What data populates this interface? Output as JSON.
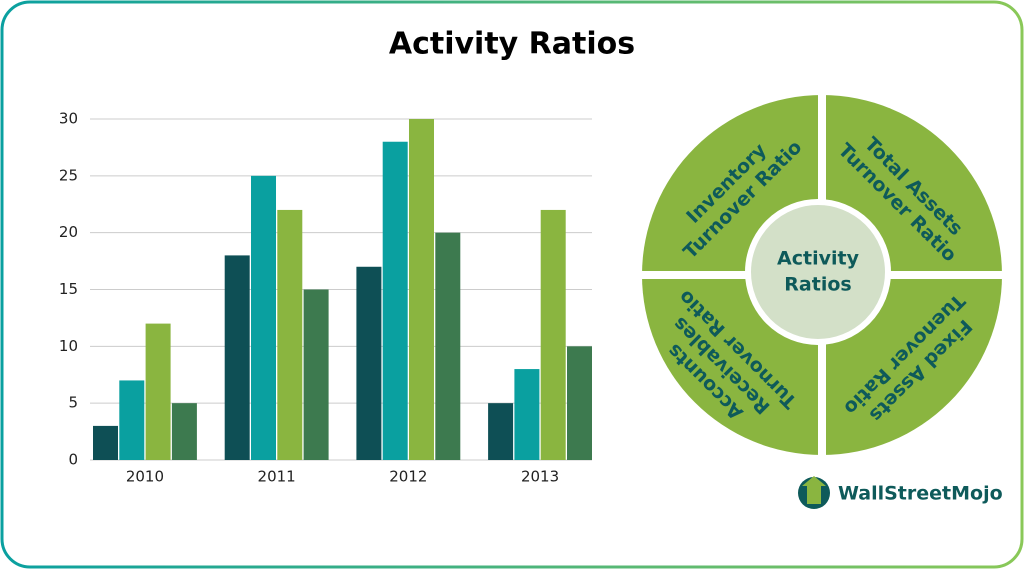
{
  "title": "Activity Ratios",
  "chart_data": {
    "type": "bar",
    "categories": [
      "2010",
      "2011",
      "2012",
      "2013"
    ],
    "series": [
      {
        "color": "#0e4f55",
        "values": [
          3,
          18,
          17,
          5
        ]
      },
      {
        "color": "#0aa0a0",
        "values": [
          7,
          25,
          28,
          8
        ]
      },
      {
        "color": "#8ab540",
        "values": [
          12,
          22,
          30,
          22
        ]
      },
      {
        "color": "#3d7a4f",
        "values": [
          5,
          15,
          20,
          10
        ]
      }
    ],
    "ylim": [
      0,
      30
    ],
    "yticks": [
      0,
      5,
      10,
      15,
      20,
      25,
      30
    ],
    "grid": true
  },
  "diagram": {
    "center": [
      "Activity",
      "Ratios"
    ],
    "quadrants": [
      {
        "lines": [
          "Inventory",
          "Turnover Ratio"
        ]
      },
      {
        "lines": [
          "Total Assets",
          "Turnover Ratio"
        ]
      },
      {
        "lines": [
          "Accounts",
          "Receivables",
          "Turnover Ratio"
        ]
      },
      {
        "lines": [
          "Fixed Assets",
          "Tuenover Ratio"
        ]
      }
    ]
  },
  "logo": "WallStreetMojo"
}
